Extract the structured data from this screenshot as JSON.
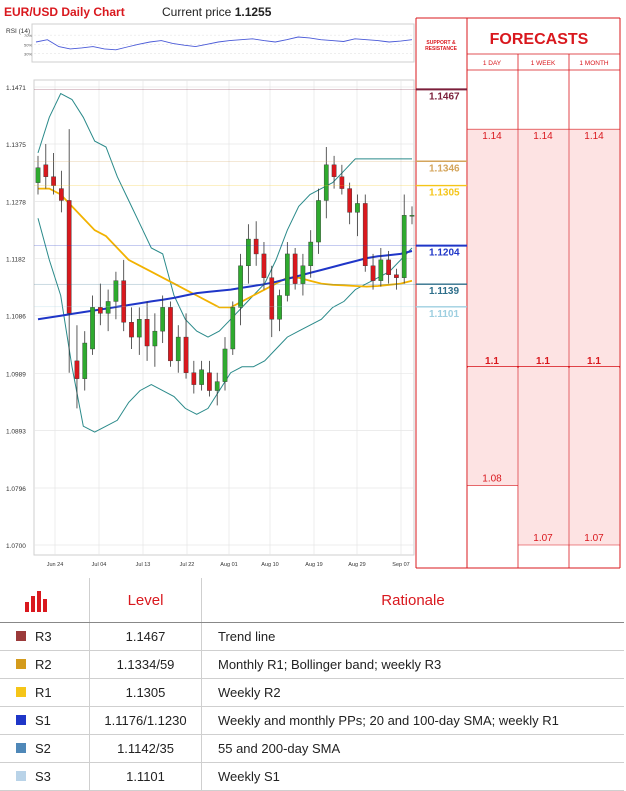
{
  "header": {
    "title": "EUR/USD Daily Chart",
    "price_label": "Current price",
    "price_value": "1.1255"
  },
  "rsi_label": "RSI (14)",
  "rsi_ticks": [
    "70%",
    "50%",
    "30%"
  ],
  "sr_header": "SUPPORT & RESISTANCE",
  "forecasts": {
    "title": "FORECASTS",
    "columns": [
      "1 DAY",
      "1 WEEK",
      "1 MONTH"
    ],
    "upper_targets": [
      "1.14",
      "1.14",
      "1.14"
    ],
    "mid_targets": [
      "1.1",
      "1.1",
      "1.1"
    ],
    "lower_targets": [
      {
        "horizon": "1 DAY",
        "value": "1.08"
      },
      {
        "horizon": "1 WEEK",
        "value": "1.07"
      },
      {
        "horizon": "1 MONTH",
        "value": "1.07"
      }
    ]
  },
  "sr_levels": [
    {
      "value": "1.1467",
      "price": 1.1467,
      "color": "#7b1f3a"
    },
    {
      "value": "1.1346",
      "price": 1.1346,
      "color": "#d4a55c"
    },
    {
      "value": "1.1305",
      "price": 1.1305,
      "color": "#f5c518"
    },
    {
      "value": "1.1204",
      "price": 1.1204,
      "color": "#1f36c8"
    },
    {
      "value": "1.1139",
      "price": 1.1139,
      "color": "#2d6e8a"
    },
    {
      "value": "1.1101",
      "price": 1.1101,
      "color": "#9ecfe0"
    }
  ],
  "chart_data": {
    "type": "candlestick",
    "title": "EUR/USD Daily Chart",
    "x_ticks": [
      "Jun 24",
      "Jul 04",
      "Jul 13",
      "Jul 22",
      "Aug 01",
      "Aug 10",
      "Aug 19",
      "Aug 29",
      "Sep 07"
    ],
    "y_ticks": [
      "1.1471",
      "1.1375",
      "1.1278",
      "1.1182",
      "1.1086",
      "1.0989",
      "1.0893",
      "1.0796",
      "1.0700"
    ],
    "ylim": [
      1.07,
      1.1471
    ],
    "candles": [
      {
        "o": 1.131,
        "h": 1.1355,
        "l": 1.129,
        "c": 1.1335
      },
      {
        "o": 1.134,
        "h": 1.1375,
        "l": 1.13,
        "c": 1.132
      },
      {
        "o": 1.132,
        "h": 1.136,
        "l": 1.129,
        "c": 1.1305
      },
      {
        "o": 1.13,
        "h": 1.133,
        "l": 1.126,
        "c": 1.128
      },
      {
        "o": 1.128,
        "h": 1.14,
        "l": 1.099,
        "c": 1.109
      },
      {
        "o": 1.101,
        "h": 1.107,
        "l": 1.093,
        "c": 1.098
      },
      {
        "o": 1.098,
        "h": 1.106,
        "l": 1.096,
        "c": 1.104
      },
      {
        "o": 1.103,
        "h": 1.112,
        "l": 1.102,
        "c": 1.11
      },
      {
        "o": 1.11,
        "h": 1.114,
        "l": 1.107,
        "c": 1.109
      },
      {
        "o": 1.109,
        "h": 1.113,
        "l": 1.106,
        "c": 1.111
      },
      {
        "o": 1.111,
        "h": 1.116,
        "l": 1.108,
        "c": 1.1145
      },
      {
        "o": 1.1145,
        "h": 1.118,
        "l": 1.106,
        "c": 1.1075
      },
      {
        "o": 1.1075,
        "h": 1.11,
        "l": 1.103,
        "c": 1.105
      },
      {
        "o": 1.105,
        "h": 1.11,
        "l": 1.102,
        "c": 1.108
      },
      {
        "o": 1.108,
        "h": 1.111,
        "l": 1.101,
        "c": 1.1035
      },
      {
        "o": 1.1035,
        "h": 1.109,
        "l": 1.1,
        "c": 1.106
      },
      {
        "o": 1.106,
        "h": 1.112,
        "l": 1.104,
        "c": 1.11
      },
      {
        "o": 1.11,
        "h": 1.111,
        "l": 1.1,
        "c": 1.101
      },
      {
        "o": 1.101,
        "h": 1.107,
        "l": 1.099,
        "c": 1.105
      },
      {
        "o": 1.105,
        "h": 1.109,
        "l": 1.098,
        "c": 1.099
      },
      {
        "o": 1.099,
        "h": 1.101,
        "l": 1.0955,
        "c": 1.097
      },
      {
        "o": 1.097,
        "h": 1.101,
        "l": 1.096,
        "c": 1.0995
      },
      {
        "o": 1.099,
        "h": 1.101,
        "l": 1.095,
        "c": 1.096
      },
      {
        "o": 1.096,
        "h": 1.099,
        "l": 1.0935,
        "c": 1.0975
      },
      {
        "o": 1.0975,
        "h": 1.105,
        "l": 1.096,
        "c": 1.103
      },
      {
        "o": 1.103,
        "h": 1.111,
        "l": 1.102,
        "c": 1.11
      },
      {
        "o": 1.11,
        "h": 1.119,
        "l": 1.107,
        "c": 1.117
      },
      {
        "o": 1.117,
        "h": 1.124,
        "l": 1.114,
        "c": 1.1215
      },
      {
        "o": 1.1215,
        "h": 1.1245,
        "l": 1.117,
        "c": 1.119
      },
      {
        "o": 1.119,
        "h": 1.121,
        "l": 1.113,
        "c": 1.115
      },
      {
        "o": 1.115,
        "h": 1.117,
        "l": 1.105,
        "c": 1.108
      },
      {
        "o": 1.108,
        "h": 1.113,
        "l": 1.106,
        "c": 1.112
      },
      {
        "o": 1.112,
        "h": 1.121,
        "l": 1.111,
        "c": 1.119
      },
      {
        "o": 1.119,
        "h": 1.12,
        "l": 1.113,
        "c": 1.114
      },
      {
        "o": 1.114,
        "h": 1.119,
        "l": 1.112,
        "c": 1.117
      },
      {
        "o": 1.117,
        "h": 1.123,
        "l": 1.115,
        "c": 1.121
      },
      {
        "o": 1.121,
        "h": 1.13,
        "l": 1.119,
        "c": 1.128
      },
      {
        "o": 1.128,
        "h": 1.137,
        "l": 1.125,
        "c": 1.134
      },
      {
        "o": 1.134,
        "h": 1.1355,
        "l": 1.13,
        "c": 1.132
      },
      {
        "o": 1.132,
        "h": 1.134,
        "l": 1.129,
        "c": 1.13
      },
      {
        "o": 1.13,
        "h": 1.131,
        "l": 1.124,
        "c": 1.126
      },
      {
        "o": 1.126,
        "h": 1.129,
        "l": 1.122,
        "c": 1.1275
      },
      {
        "o": 1.1275,
        "h": 1.129,
        "l": 1.116,
        "c": 1.117
      },
      {
        "o": 1.117,
        "h": 1.119,
        "l": 1.113,
        "c": 1.1145
      },
      {
        "o": 1.1145,
        "h": 1.12,
        "l": 1.1135,
        "c": 1.118
      },
      {
        "o": 1.118,
        "h": 1.1195,
        "l": 1.114,
        "c": 1.1155
      },
      {
        "o": 1.1155,
        "h": 1.1165,
        "l": 1.113,
        "c": 1.115
      },
      {
        "o": 1.115,
        "h": 1.129,
        "l": 1.114,
        "c": 1.1255
      },
      {
        "o": 1.1255,
        "h": 1.127,
        "l": 1.124,
        "c": 1.1255
      }
    ],
    "series": [
      {
        "name": "Bollinger upper",
        "values": [
          1.136,
          1.142,
          1.146,
          1.145,
          1.142,
          1.138,
          1.137,
          1.132,
          1.128,
          1.124,
          1.12,
          1.119,
          1.112,
          1.108,
          1.106,
          1.105,
          1.106,
          1.108,
          1.11,
          1.112,
          1.114,
          1.118,
          1.123,
          1.127,
          1.129,
          1.13,
          1.131,
          1.133,
          1.135,
          1.135,
          1.135,
          1.135,
          1.135,
          1.135
        ]
      },
      {
        "name": "Bollinger lower",
        "values": [
          1.125,
          1.118,
          1.112,
          1.1,
          1.09,
          1.089,
          1.09,
          1.091,
          1.094,
          1.096,
          1.097,
          1.096,
          1.095,
          1.093,
          1.092,
          1.093,
          1.096,
          1.099,
          1.1,
          1.1,
          1.101,
          1.103,
          1.105,
          1.106,
          1.107,
          1.108,
          1.11,
          1.111,
          1.113,
          1.114,
          1.115,
          1.116,
          1.118,
          1.12
        ]
      },
      {
        "name": "SMA yellow",
        "values": [
          1.13,
          1.13,
          1.129,
          1.127,
          1.125,
          1.123,
          1.122,
          1.12,
          1.118,
          1.117,
          1.116,
          1.115,
          1.114,
          1.113,
          1.112,
          1.111,
          1.11,
          1.11,
          1.111,
          1.112,
          1.113,
          1.114,
          1.115,
          1.115,
          1.1145,
          1.114,
          1.1138,
          1.1137,
          1.1136,
          1.1135,
          1.1136,
          1.1138,
          1.114,
          1.1145
        ]
      },
      {
        "name": "SMA blue",
        "values": [
          1.108,
          1.1083,
          1.1086,
          1.1089,
          1.1092,
          1.1095,
          1.1098,
          1.1101,
          1.1104,
          1.1107,
          1.111,
          1.1113,
          1.1116,
          1.112,
          1.1124,
          1.1126,
          1.1128,
          1.113,
          1.1133,
          1.1136,
          1.1139,
          1.1143,
          1.1148,
          1.1153,
          1.1158,
          1.1163,
          1.1168,
          1.1173,
          1.1178,
          1.1183,
          1.1186,
          1.1188,
          1.119,
          1.1195
        ]
      }
    ],
    "rsi": [
      55,
      60,
      45,
      40,
      42,
      45,
      40,
      38,
      44,
      50,
      55,
      58,
      52,
      48,
      45,
      50,
      55,
      58,
      60,
      62,
      58,
      55,
      60,
      66,
      64,
      60,
      58,
      56,
      62,
      60,
      58,
      55,
      57,
      60
    ]
  },
  "table": {
    "headers": {
      "level": "Level",
      "rationale": "Rationale"
    },
    "rows": [
      {
        "label": "R3",
        "color": "#9b3a3a",
        "value": "1.1467",
        "rationale": "Trend line"
      },
      {
        "label": "R2",
        "color": "#d49b1c",
        "value": "1.1334/59",
        "rationale": "Monthly R1; Bollinger band; weekly R3"
      },
      {
        "label": "R1",
        "color": "#f5c518",
        "value": "1.1305",
        "rationale": "Weekly R2"
      },
      {
        "label": "S1",
        "color": "#1f36c8",
        "value": "1.1176/1.1230",
        "rationale": "Weekly and monthly PPs; 20 and 100-day SMA; weekly R1"
      },
      {
        "label": "S2",
        "color": "#4f88b8",
        "value": "1.1142/35",
        "rationale": "55 and 200-day SMA"
      },
      {
        "label": "S3",
        "color": "#b9d3e8",
        "value": "1.1101",
        "rationale": "Weekly S1"
      }
    ]
  }
}
